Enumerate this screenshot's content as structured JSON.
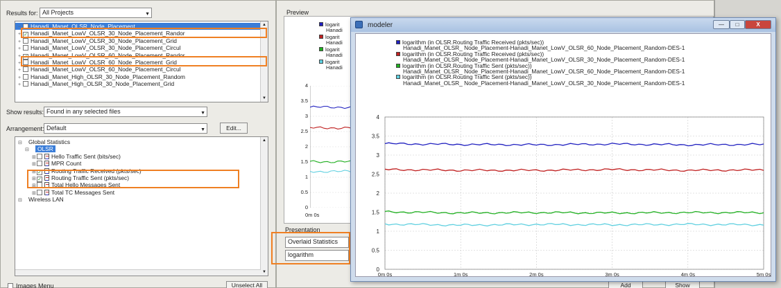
{
  "left": {
    "results_for_label": "Results for:",
    "results_for_value": "All Projects",
    "file_list": [
      {
        "label": "Hanadi_Manet_OLSR_Node_Placement",
        "checked": false,
        "selected": true,
        "plus": "−"
      },
      {
        "label": "Hanadi_Manet_LowV_OLSR_30_Node_Placement_Randor",
        "checked": true,
        "selected": false,
        "plus": "+"
      },
      {
        "label": "Hanadi_Manet_LowV_OLSR_30_Node_Placement_Grid",
        "checked": false,
        "selected": false,
        "plus": "+"
      },
      {
        "label": "Hanadi_Manet_LowV_OLSR_30_Node_Placement_Circul",
        "checked": false,
        "selected": false,
        "plus": "+"
      },
      {
        "label": "Hanadi_Manet_LowV_OLSR_60_Node_Placement_Randor",
        "checked": true,
        "selected": false,
        "plus": "+"
      },
      {
        "label": "Hanadi_Manet_LowV_OLSR_60_Node_Placement_Grid",
        "checked": false,
        "selected": false,
        "plus": "+"
      },
      {
        "label": "Hanadi_Manet_LowV_OLSR_60_Node_Placement_Circul",
        "checked": false,
        "selected": false,
        "plus": "+"
      },
      {
        "label": "Hanadi_Manet_High_OLSR_30_Node_Placement_Random",
        "checked": false,
        "selected": false,
        "plus": "+"
      },
      {
        "label": "Hanadi_Manet_High_OLSR_30_Node_Placement_Grid",
        "checked": false,
        "selected": false,
        "plus": "+"
      }
    ],
    "show_results_label": "Show results:",
    "show_results_value": "Found in any selected files",
    "arrangement_label": "Arrangement:",
    "arrangement_value": "Default",
    "edit_label": "Edit...",
    "tree": [
      {
        "label": "Global Statistics",
        "indent": 0,
        "type": "folder",
        "checked": null,
        "selected": false
      },
      {
        "label": "OLSR",
        "indent": 1,
        "type": "folder",
        "checked": null,
        "selected": true
      },
      {
        "label": "Hello Traffic Sent (bits/sec)",
        "indent": 2,
        "type": "stat",
        "checked": false,
        "selected": false
      },
      {
        "label": "MPR Count",
        "indent": 2,
        "type": "stat",
        "checked": false,
        "selected": false
      },
      {
        "label": "Routing Traffic Received (pkts/sec)",
        "indent": 2,
        "type": "stat",
        "checked": true,
        "selected": false
      },
      {
        "label": "Routing Traffic Sent (pkts/sec)",
        "indent": 2,
        "type": "stat",
        "checked": true,
        "selected": false
      },
      {
        "label": "Total Hello Messages Sent",
        "indent": 2,
        "type": "stat",
        "checked": false,
        "selected": false
      },
      {
        "label": "Total TC Messages Sent",
        "indent": 2,
        "type": "stat",
        "checked": false,
        "selected": false
      },
      {
        "label": "Wireless LAN",
        "indent": 0,
        "type": "folder",
        "checked": null,
        "selected": false
      }
    ],
    "bottom_left_label": "Images Menu",
    "bottom_right_label": "Unselect All"
  },
  "preview": {
    "title": "Preview",
    "legend": [
      {
        "label": "logarit",
        "sub": "Hanadi",
        "color": "#2020c0"
      },
      {
        "label": "logarit",
        "sub": "Hanadi",
        "color": "#c02020"
      },
      {
        "label": "logarit",
        "sub": "Hanadi",
        "color": "#20b020"
      },
      {
        "label": "logarit",
        "sub": "Hanadi",
        "color": "#60d0e0"
      }
    ],
    "x_label": "0m 0s",
    "y_ticks": [
      "4",
      "3.5",
      "3",
      "2.5",
      "2",
      "1.5",
      "1",
      "0.5",
      "0"
    ],
    "presentation_label": "Presentation",
    "presentation_value": "Overlaid Statistics",
    "scale_value": "logarithm"
  },
  "modeler": {
    "title": "modeler",
    "min_label": "—",
    "max_label": "□",
    "close_label": "X"
  },
  "footer": {
    "add_label": "Add",
    "show_label": "Show"
  },
  "chart_data": {
    "type": "line",
    "x": [
      "0m 0s",
      "1m 0s",
      "2m 0s",
      "3m 0s",
      "4m 0s",
      "5m 0s"
    ],
    "x_ticks": [
      "0m 0s",
      "1m 0s",
      "2m 0s",
      "3m 0s",
      "4m 0s",
      "5m 0s"
    ],
    "y_ticks": [
      "4",
      "3.5",
      "3",
      "2.5",
      "2",
      "1.5",
      "1",
      "0.5",
      "0"
    ],
    "ylim": [
      0,
      4
    ],
    "grid": true,
    "legend_position": "top",
    "series": [
      {
        "name": "logarithm (in OLSR.Routing Traffic Received (pkts/sec))",
        "sub": "Hanadi_Manet_OLSR_ Node_Placement-Hanadi_Manet_LowV_OLSR_60_Node_Placement_Random-DES-1",
        "color": "#2020c0",
        "values": [
          3.3,
          3.28,
          3.27,
          3.29,
          3.27,
          3.28
        ]
      },
      {
        "name": "logarithm (in OLSR.Routing Traffic Received (pkts/sec))",
        "sub": "Hanadi_Manet_OLSR_ Node_Placement-Hanadi_Manet_LowV_OLSR_30_Node_Placement_Random-DES-1",
        "color": "#c02020",
        "values": [
          2.62,
          2.6,
          2.6,
          2.62,
          2.6,
          2.61
        ]
      },
      {
        "name": "logarithm (in OLSR.Routing Traffic Sent (pkts/sec))",
        "sub": "Hanadi_Manet_OLSR_ Node_Placement-Hanadi_Manet_LowV_OLSR_60_Node_Placement_Random-DES-1",
        "color": "#20b020",
        "values": [
          1.51,
          1.48,
          1.49,
          1.48,
          1.49,
          1.49
        ]
      },
      {
        "name": "logarithm (in OLSR.Routing Traffic Sent (pkts/sec))",
        "sub": "Hanadi_Manet_OLSR_ Node_Placement-Hanadi_Manet_LowV_OLSR_30_Node_Placement_Random-DES-1",
        "color": "#60d0e0",
        "values": [
          1.19,
          1.16,
          1.18,
          1.17,
          1.18,
          1.17
        ]
      }
    ]
  }
}
